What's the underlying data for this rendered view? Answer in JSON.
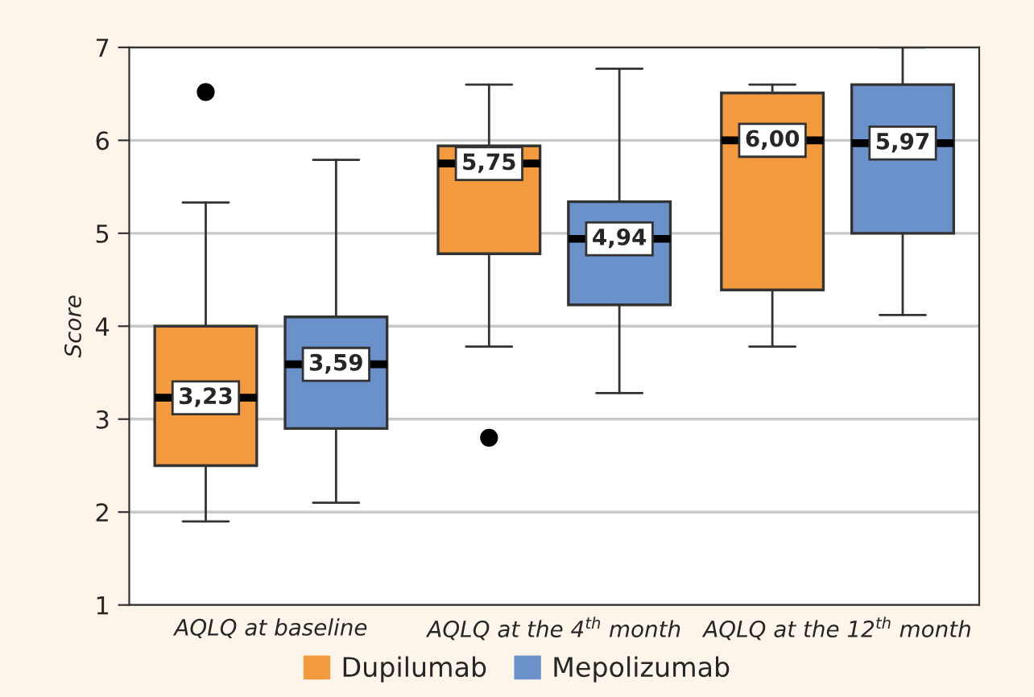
{
  "chart_data": {
    "type": "box",
    "ylabel": "Score",
    "categories": [
      "AQLQ at baseline",
      "AQLQ at the 4$^{th}$ month",
      "AQLQ at the 12$^{th}$ month"
    ],
    "ylim": [
      1,
      7
    ],
    "yticks": [
      1,
      2,
      3,
      4,
      5,
      6,
      7
    ],
    "grid": "y",
    "legend": "bottom",
    "series": [
      {
        "name": "Dupilumab",
        "color": "#f39a3e",
        "value_labels": [
          "3,23",
          "5,75",
          "6,00"
        ],
        "boxes": [
          {
            "low": 1.9,
            "q1": 2.5,
            "median": 3.23,
            "q3": 4.0,
            "high": 5.33,
            "outliers": [
              6.52
            ]
          },
          {
            "low": 3.78,
            "q1": 4.78,
            "median": 5.75,
            "q3": 5.94,
            "high": 6.6,
            "outliers": [
              2.8
            ]
          },
          {
            "low": 3.78,
            "q1": 4.39,
            "median": 6.0,
            "q3": 6.51,
            "high": 6.6
          }
        ]
      },
      {
        "name": "Mepolizumab",
        "color": "#6a91c9",
        "value_labels": [
          "3,59",
          "4,94",
          "5,97"
        ],
        "boxes": [
          {
            "low": 2.1,
            "q1": 2.9,
            "median": 3.59,
            "q3": 4.1,
            "high": 5.79
          },
          {
            "low": 3.28,
            "q1": 4.23,
            "median": 4.94,
            "q3": 5.34,
            "high": 6.77
          },
          {
            "low": 4.12,
            "q1": 5.0,
            "median": 5.97,
            "q3": 6.6,
            "high": 7.0
          }
        ]
      }
    ]
  }
}
